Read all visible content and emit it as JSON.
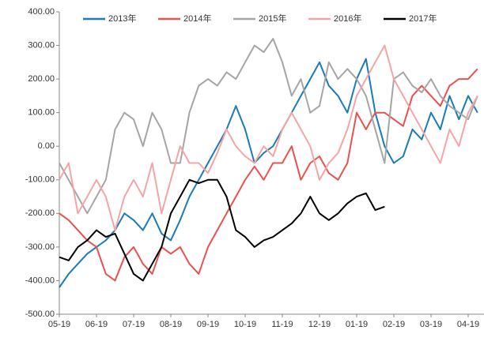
{
  "chart_data": {
    "type": "line",
    "categories": [
      "05-19",
      null,
      null,
      null,
      "06-19",
      null,
      null,
      null,
      "07-19",
      null,
      null,
      null,
      "08-19",
      null,
      null,
      null,
      "09-19",
      null,
      null,
      null,
      "10-19",
      null,
      null,
      null,
      "11-19",
      null,
      null,
      null,
      "12-19",
      null,
      null,
      null,
      "01-19",
      null,
      null,
      null,
      "02-19",
      null,
      null,
      null,
      "03-19",
      null,
      null,
      null,
      "04-19",
      null
    ],
    "series": [
      {
        "name": "2013年",
        "color": "#1b7bb6",
        "values": [
          -420,
          -380,
          -350,
          -320,
          -300,
          -280,
          -250,
          -200,
          -220,
          -250,
          -200,
          -260,
          -280,
          -220,
          -150,
          -100,
          -50,
          0,
          50,
          120,
          50,
          -50,
          -20,
          0,
          50,
          100,
          150,
          200,
          250,
          180,
          150,
          100,
          200,
          260,
          100,
          0,
          -50,
          -30,
          50,
          20,
          100,
          50,
          150,
          80,
          150,
          100
        ]
      },
      {
        "name": "2014年",
        "color": "#e9514f",
        "values": [
          -200,
          -220,
          -250,
          -280,
          -300,
          -380,
          -400,
          -330,
          -300,
          -350,
          -380,
          -300,
          -320,
          -300,
          -350,
          -380,
          -300,
          -250,
          -200,
          -150,
          -100,
          -60,
          -100,
          -50,
          -50,
          0,
          -100,
          -50,
          -30,
          -80,
          -100,
          -50,
          100,
          50,
          100,
          100,
          80,
          60,
          150,
          180,
          150,
          120,
          180,
          200,
          200,
          230
        ]
      },
      {
        "name": "2015年",
        "color": "#a5a5a5",
        "values": [
          -50,
          -100,
          -150,
          -200,
          -150,
          -100,
          50,
          100,
          80,
          0,
          100,
          50,
          -50,
          -50,
          100,
          180,
          200,
          180,
          220,
          200,
          250,
          300,
          280,
          320,
          250,
          150,
          200,
          100,
          120,
          250,
          200,
          230,
          200,
          150,
          50,
          -50,
          200,
          220,
          180,
          160,
          200,
          150,
          120,
          100,
          80,
          150
        ]
      },
      {
        "name": "2016年",
        "color": "#f5a4a6",
        "values": [
          -100,
          -50,
          -200,
          -150,
          -100,
          -150,
          -250,
          -150,
          -100,
          -150,
          -50,
          -200,
          -100,
          0,
          -50,
          -50,
          -80,
          -20,
          50,
          0,
          -30,
          -50,
          0,
          -30,
          50,
          100,
          50,
          0,
          -100,
          -50,
          -20,
          50,
          150,
          200,
          250,
          300,
          200,
          150,
          100,
          50,
          0,
          -50,
          50,
          0,
          100,
          150
        ]
      },
      {
        "name": "2017年",
        "color": "#000000",
        "values": [
          -330,
          -340,
          -300,
          -280,
          -250,
          -270,
          -260,
          -320,
          -380,
          -400,
          -350,
          -300,
          -200,
          -150,
          -100,
          -110,
          -100,
          -100,
          -150,
          -250,
          -270,
          -300,
          -280,
          -270,
          -250,
          -230,
          -200,
          -150,
          -200,
          -220,
          -200,
          -170,
          -150,
          -140,
          -190,
          -180,
          null,
          null,
          null,
          null,
          null,
          null,
          null,
          null,
          null,
          null
        ]
      }
    ],
    "ylim": [
      -500,
      400
    ],
    "yticks": [
      {
        "value": -500,
        "label": "-500.00"
      },
      {
        "value": -400,
        "label": "-400.00"
      },
      {
        "value": -300,
        "label": "-300.00"
      },
      {
        "value": -200,
        "label": "-200.00"
      },
      {
        "value": -100,
        "label": "-100.00"
      },
      {
        "value": 0,
        "label": "0.00"
      },
      {
        "value": 100,
        "label": "100.00"
      },
      {
        "value": 200,
        "label": "200.00"
      },
      {
        "value": 300,
        "label": "300.00"
      },
      {
        "value": 400,
        "label": "400.00"
      }
    ],
    "legend": "top"
  }
}
